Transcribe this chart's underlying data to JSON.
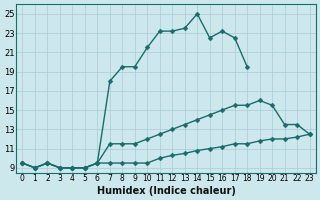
{
  "xlabel": "Humidex (Indice chaleur)",
  "background_color": "#cce8ec",
  "line_color": "#1a6b6b",
  "x_values": [
    0,
    1,
    2,
    3,
    4,
    5,
    6,
    7,
    8,
    9,
    10,
    11,
    12,
    13,
    14,
    15,
    16,
    17,
    18,
    19,
    20,
    21,
    22,
    23
  ],
  "line_top_y": [
    9.5,
    9.0,
    9.5,
    9.0,
    9.0,
    9.0,
    9.5,
    18.0,
    19.5,
    19.5,
    21.5,
    23.2,
    23.2,
    23.5,
    25.0,
    22.5,
    23.2,
    22.5,
    19.5,
    null,
    null,
    null,
    null,
    null
  ],
  "line_mid_y": [
    9.5,
    9.0,
    9.5,
    9.0,
    9.0,
    9.0,
    9.5,
    11.5,
    11.5,
    11.5,
    12.0,
    12.5,
    13.0,
    13.5,
    14.0,
    14.5,
    15.0,
    15.5,
    15.5,
    16.0,
    15.5,
    13.5,
    13.5,
    12.5
  ],
  "line_bot_y": [
    9.5,
    9.0,
    9.5,
    9.0,
    9.0,
    9.0,
    9.5,
    9.5,
    9.5,
    9.5,
    9.5,
    10.0,
    10.3,
    10.5,
    10.8,
    11.0,
    11.2,
    11.5,
    11.5,
    11.8,
    12.0,
    12.0,
    12.2,
    12.5
  ],
  "ylim": [
    8.5,
    26.0
  ],
  "xlim": [
    -0.5,
    23.5
  ],
  "yticks": [
    9,
    11,
    13,
    15,
    17,
    19,
    21,
    23,
    25
  ],
  "xticks": [
    0,
    1,
    2,
    3,
    4,
    5,
    6,
    7,
    8,
    9,
    10,
    11,
    12,
    13,
    14,
    15,
    16,
    17,
    18,
    19,
    20,
    21,
    22,
    23
  ],
  "grid_color": "#aaccd4",
  "markersize": 2.5,
  "linewidth": 1.0
}
